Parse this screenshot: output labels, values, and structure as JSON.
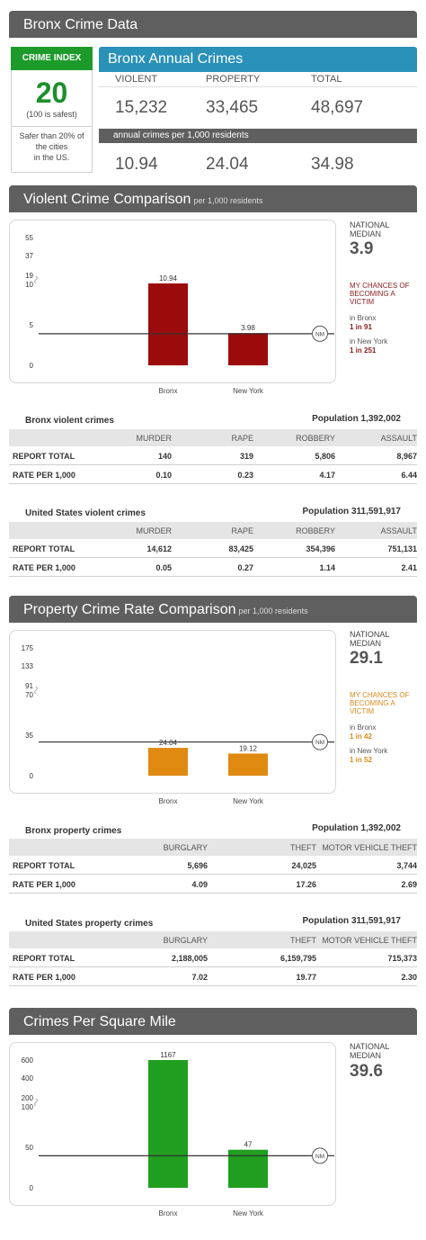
{
  "page_title": "Bronx Crime Data",
  "crime_index": {
    "label": "CRIME INDEX",
    "value": "20",
    "safe_note": "(100 is safest)",
    "comparison_line1": "Safer than 20% of",
    "comparison_line2": "the cities",
    "comparison_line3": "in the US."
  },
  "annual": {
    "title": "Bronx Annual Crimes",
    "col_violent": "VIOLENT",
    "col_property": "PROPERTY",
    "col_total": "TOTAL",
    "violent": "15,232",
    "property": "33,465",
    "total": "48,697",
    "per_label": "annual crimes per 1,000 residents",
    "violent_rate": "10.94",
    "property_rate": "24.04",
    "total_rate": "34.98"
  },
  "violent_section": {
    "title": "Violent Crime Comparison",
    "subtitle": "per 1,000 residents",
    "national_label1": "NATIONAL",
    "national_label2": "MEDIAN",
    "national_value": "3.9",
    "chances_line1": "MY CHANCES OF",
    "chances_line2": "BECOMING A",
    "chances_line3": "VICTIM",
    "in_bronx_label": "in Bronx",
    "in_bronx_value": "1 in 91",
    "in_ny_label": "in New York",
    "in_ny_value": "1 in 251",
    "chances_color": "#8b1a1a"
  },
  "property_section": {
    "title": "Property Crime Rate Comparison",
    "subtitle": "per 1,000 residents",
    "national_label1": "NATIONAL",
    "national_label2": "MEDIAN",
    "national_value": "29.1",
    "chances_line1": "MY CHANCES OF",
    "chances_line2": "BECOMING A",
    "chances_line3": "VICTIM",
    "in_bronx_label": "in Bronx",
    "in_bronx_value": "1 in 42",
    "in_ny_label": "in New York",
    "in_ny_value": "1 in 52",
    "chances_color": "#d98a1c"
  },
  "sqmile_section": {
    "title": "Crimes Per Square Mile",
    "national_label1": "NATIONAL",
    "national_label2": "MEDIAN",
    "national_value": "39.6"
  },
  "tables": {
    "bronx_violent": {
      "title": "Bronx violent crimes",
      "population": "Population 1,392,002",
      "headers": [
        "MURDER",
        "RAPE",
        "ROBBERY",
        "ASSAULT"
      ],
      "rows": [
        {
          "label": "REPORT TOTAL",
          "values": [
            "140",
            "319",
            "5,806",
            "8,967"
          ]
        },
        {
          "label": "RATE PER 1,000",
          "values": [
            "0.10",
            "0.23",
            "4.17",
            "6.44"
          ]
        }
      ]
    },
    "us_violent": {
      "title": "United States violent crimes",
      "population": "Population 311,591,917",
      "headers": [
        "MURDER",
        "RAPE",
        "ROBBERY",
        "ASSAULT"
      ],
      "rows": [
        {
          "label": "REPORT TOTAL",
          "values": [
            "14,612",
            "83,425",
            "354,396",
            "751,131"
          ]
        },
        {
          "label": "RATE PER 1,000",
          "values": [
            "0.05",
            "0.27",
            "1.14",
            "2.41"
          ]
        }
      ]
    },
    "bronx_property": {
      "title": "Bronx property crimes",
      "population": "Population 1,392,002",
      "headers": [
        "BURGLARY",
        "THEFT",
        "MOTOR VEHICLE THEFT"
      ],
      "rows": [
        {
          "label": "REPORT TOTAL",
          "values": [
            "5,696",
            "24,025",
            "3,744"
          ]
        },
        {
          "label": "RATE PER 1,000",
          "values": [
            "4.09",
            "17.26",
            "2.69"
          ]
        }
      ]
    },
    "us_property": {
      "title": "United States property crimes",
      "population": "Population 311,591,917",
      "headers": [
        "BURGLARY",
        "THEFT",
        "MOTOR VEHICLE THEFT"
      ],
      "rows": [
        {
          "label": "REPORT TOTAL",
          "values": [
            "2,188,005",
            "6,159,795",
            "715,373"
          ]
        },
        {
          "label": "RATE PER 1,000",
          "values": [
            "7.02",
            "19.77",
            "2.30"
          ]
        }
      ]
    }
  },
  "chart_data": [
    {
      "type": "bar",
      "categories": [
        "Bronx",
        "New York"
      ],
      "values": [
        10.94,
        3.98
      ],
      "value_labels": [
        "10.94",
        "3.98"
      ],
      "ytick_labels": [
        "0",
        "5",
        "10",
        "19",
        "37",
        "55"
      ],
      "reference_line": {
        "label": "NM",
        "value": 3.9
      },
      "color": "#9b0b0b",
      "grid": false
    },
    {
      "type": "bar",
      "categories": [
        "Bronx",
        "New York"
      ],
      "values": [
        24.04,
        19.12
      ],
      "value_labels": [
        "24.04",
        "19.12"
      ],
      "ytick_labels": [
        "0",
        "35",
        "70",
        "91",
        "133",
        "175"
      ],
      "reference_line": {
        "label": "NM",
        "value": 29.1
      },
      "color": "#e08a12",
      "grid": false
    },
    {
      "type": "bar",
      "categories": [
        "Bronx",
        "New York"
      ],
      "values": [
        1167,
        47
      ],
      "value_labels": [
        "1167",
        "47"
      ],
      "ytick_labels": [
        "0",
        "50",
        "100",
        "200",
        "400",
        "600"
      ],
      "reference_line": {
        "label": "NM",
        "value": 39.6
      },
      "color": "#1f9e1f",
      "grid": false
    }
  ]
}
